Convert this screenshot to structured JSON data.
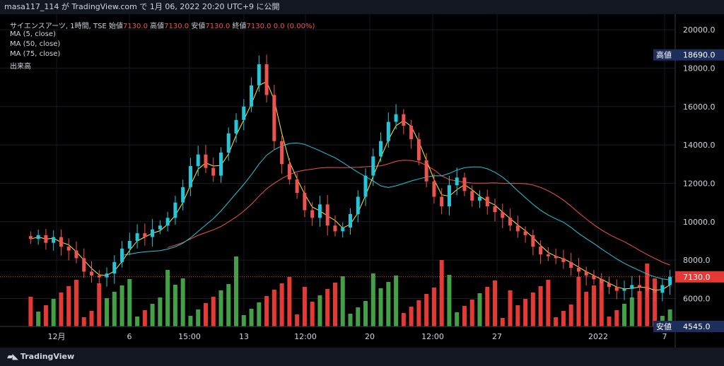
{
  "header": {
    "caption": "masa117_114 が TradingView.com で 1月 06, 2022 20:20 UTC+9 に公開"
  },
  "legend": {
    "symbol": "サイエンスアーツ, 1時間, TSE",
    "open_label": "始値",
    "open": "7130.0",
    "high_label": "高値",
    "high": "7130.0",
    "low_label": "安値",
    "low": "7130.0",
    "close_label": "終値",
    "close": "7130.0",
    "change": "0.0 (0.00%)",
    "ma5": "MA (5, close)",
    "ma50": "MA (50, close)",
    "ma75": "MA (75, close)",
    "volume": "出来高"
  },
  "price_tags": {
    "high_label": "高値",
    "high_value": "18690.0",
    "last_value": "7130.0",
    "low_label": "安値",
    "low_value": "4545.0"
  },
  "footer": {
    "brand": "TradingView"
  },
  "colors": {
    "up": "#26c6da",
    "down": "#ef5350",
    "vol_up": "#43a047",
    "vol_down": "#e53935",
    "ma5": "#ffeb3b",
    "ma50": "#26c6da",
    "ma75": "#ef5350",
    "background": "#000000"
  },
  "chart_data": {
    "type": "candlestick",
    "y_axis_ticks": [
      "20000.0",
      "18000.0",
      "16000.0",
      "14000.0",
      "12000.0",
      "10000.0",
      "8000.0",
      "6000.0"
    ],
    "ylim": [
      4545,
      20500
    ],
    "x_axis_ticks": [
      "12月",
      "6",
      "15:00",
      "13",
      "12:00",
      "20",
      "12:00",
      "27",
      "2022",
      "7"
    ],
    "closes": [
      9100,
      9300,
      8900,
      9200,
      8700,
      8500,
      8100,
      7400,
      7200,
      7100,
      7300,
      7900,
      8600,
      9000,
      9400,
      9200,
      9600,
      9800,
      10200,
      11000,
      11800,
      12900,
      13500,
      12800,
      12400,
      13600,
      14600,
      15300,
      16000,
      17100,
      18200,
      16600,
      14200,
      13000,
      12200,
      11500,
      10600,
      10200,
      10900,
      9800,
      9500,
      9700,
      10400,
      11300,
      12400,
      13400,
      14200,
      15200,
      15600,
      15000,
      14300,
      13200,
      12100,
      11300,
      10800,
      11900,
      12300,
      11600,
      11100,
      11300,
      10800,
      10500,
      10200,
      9800,
      9500,
      9300,
      8700,
      8300,
      8200,
      8100,
      7900,
      7600,
      7400,
      7200,
      7000,
      6800,
      6600,
      6400,
      6500,
      6700,
      6600,
      6400,
      6300,
      6700,
      7130
    ],
    "series": [
      {
        "name": "MA (5, close)"
      },
      {
        "name": "MA (50, close)"
      },
      {
        "name": "MA (75, close)"
      }
    ]
  }
}
